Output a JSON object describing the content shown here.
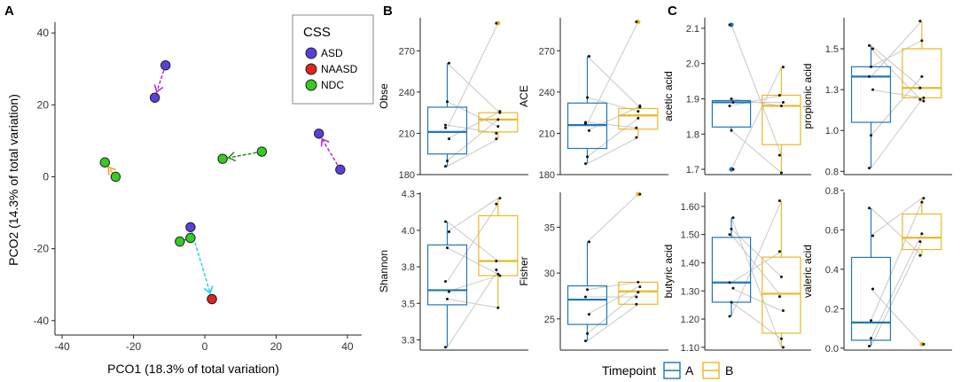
{
  "colors": {
    "A": "#1F78B4",
    "B": "#E8B923",
    "ASD": "#5A3FE0",
    "NAASD": "#E3231E",
    "NDC": "#33CC22",
    "ink": "#333333",
    "axis": "#222222",
    "pair": "#c8c8c8"
  },
  "panel_labels": {
    "a": "A",
    "b": "B",
    "c": "C"
  },
  "legend": {
    "timepoint_title": "Timepoint",
    "timepoint_a": "A",
    "timepoint_b": "B"
  },
  "chart_data": [
    {
      "id": "pcoa",
      "type": "scatter",
      "title": "",
      "xlabel": "PCO1 (18.3% of total variation)",
      "ylabel": "PCO2 (14.3% of total variation)",
      "xlim": [
        -42,
        44
      ],
      "ylim": [
        -44,
        43
      ],
      "xticks": [
        -40,
        -20,
        0,
        20,
        40
      ],
      "yticks": [
        -40,
        -20,
        0,
        20,
        40
      ],
      "legend_title": "CSS",
      "legend_entries": [
        "ASD",
        "NAASD",
        "NDC"
      ],
      "legend_position": "top-right",
      "series": [
        {
          "name": "ASD",
          "pairs": [
            {
              "from": [
                -11,
                31
              ],
              "to": [
                -14,
                22
              ],
              "arrow": "purple"
            },
            {
              "from": [
                38,
                2
              ],
              "to": [
                32,
                12
              ],
              "arrow": "purple"
            },
            {
              "from": [
                -4,
                -14
              ],
              "to": [
                2,
                -34
              ],
              "arrow": "cyan"
            }
          ]
        },
        {
          "name": "NAASD",
          "points": [
            [
              2,
              -34
            ]
          ]
        },
        {
          "name": "NDC",
          "pairs": [
            {
              "from": [
                -25,
                0
              ],
              "to": [
                -28,
                4
              ],
              "arrow": "orange"
            },
            {
              "from": [
                16,
                7
              ],
              "to": [
                5,
                5
              ],
              "arrow": "green"
            },
            {
              "from": [
                -7,
                -18
              ],
              "to": [
                -4,
                -17
              ],
              "arrow": "purple"
            }
          ]
        }
      ]
    },
    {
      "id": "obse",
      "type": "box",
      "ylabel": "Obse",
      "ylim": [
        180,
        294
      ],
      "yticks": [
        180,
        210,
        240,
        270
      ],
      "groups": {
        "A": {
          "min": 186,
          "q1": 195,
          "median": 211,
          "q3": 229,
          "max": 261
        },
        "B": {
          "min": 206,
          "q1": 211,
          "median": 220,
          "q3": 225,
          "max": 226
        }
      },
      "outliers": {
        "A": [],
        "B": [
          290
        ]
      },
      "pairs": [
        [
          186,
          206
        ],
        [
          190,
          220
        ],
        [
          206,
          225
        ],
        [
          216,
          210
        ],
        [
          233,
          215
        ],
        [
          261,
          226
        ],
        [
          214,
          290
        ]
      ]
    },
    {
      "id": "ace",
      "type": "box",
      "ylabel": "ACE",
      "ylim": [
        180,
        294
      ],
      "yticks": [
        180,
        210,
        240,
        270
      ],
      "groups": {
        "A": {
          "min": 188,
          "q1": 199,
          "median": 216,
          "q3": 232,
          "max": 266
        },
        "B": {
          "min": 207,
          "q1": 213,
          "median": 223,
          "q3": 228,
          "max": 230
        }
      },
      "outliers": {
        "A": [],
        "B": [
          291
        ]
      },
      "pairs": [
        [
          188,
          207
        ],
        [
          193,
          221
        ],
        [
          212,
          229
        ],
        [
          218,
          214
        ],
        [
          236,
          226
        ],
        [
          266,
          230
        ],
        [
          217,
          291
        ]
      ]
    },
    {
      "id": "shannon",
      "type": "box",
      "ylabel": "Shannon",
      "ylim": [
        3.18,
        4.26
      ],
      "yticks": [
        3.25,
        3.5,
        3.75,
        4.0,
        4.25
      ],
      "groups": {
        "A": {
          "min": 3.2,
          "q1": 3.49,
          "median": 3.59,
          "q3": 3.9,
          "max": 4.06
        },
        "B": {
          "min": 3.47,
          "q1": 3.69,
          "median": 3.79,
          "q3": 4.1,
          "max": 4.22
        }
      },
      "outliers": {
        "A": [],
        "B": []
      },
      "pairs": [
        [
          3.2,
          3.73
        ],
        [
          3.53,
          3.47
        ],
        [
          3.58,
          3.69
        ],
        [
          3.65,
          4.18
        ],
        [
          3.88,
          3.7
        ],
        [
          3.99,
          4.22
        ],
        [
          4.06,
          3.79
        ]
      ]
    },
    {
      "id": "fisher",
      "type": "box",
      "ylabel": "Fisher",
      "ylim": [
        21.6,
        38.8
      ],
      "yticks": [
        25,
        30,
        35
      ],
      "groups": {
        "A": {
          "min": 22.6,
          "q1": 24.4,
          "median": 27.1,
          "q3": 28.6,
          "max": 33.4
        },
        "B": {
          "min": 26.6,
          "q1": 26.6,
          "median": 28.0,
          "q3": 29.0,
          "max": 29.1
        }
      },
      "outliers": {
        "A": [],
        "B": [
          38.6
        ]
      },
      "pairs": [
        [
          22.6,
          26.6
        ],
        [
          23.4,
          27.9
        ],
        [
          25.5,
          28.5
        ],
        [
          27.4,
          27.4
        ],
        [
          28.2,
          29.0
        ],
        [
          33.4,
          38.6
        ]
      ]
    },
    {
      "id": "acetic",
      "type": "box",
      "ylabel": "acetic acid",
      "ylim": [
        1.685,
        2.13
      ],
      "yticks": [
        1.7,
        1.8,
        1.9,
        2.0,
        2.1
      ],
      "groups": {
        "A": {
          "min": 1.81,
          "q1": 1.82,
          "median": 1.89,
          "q3": 1.895,
          "max": 1.9
        },
        "B": {
          "min": 1.69,
          "q1": 1.77,
          "median": 1.88,
          "q3": 1.91,
          "max": 1.99
        }
      },
      "outliers": {
        "A": [
          1.7,
          2.11
        ],
        "B": []
      },
      "pairs": [
        [
          2.11,
          1.74
        ],
        [
          1.9,
          1.88
        ],
        [
          1.89,
          1.89
        ],
        [
          1.88,
          1.91
        ],
        [
          1.81,
          1.69
        ],
        [
          1.7,
          1.99
        ]
      ]
    },
    {
      "id": "propionic",
      "type": "box",
      "ylabel": "propionic acid",
      "ylim": [
        0.73,
        1.69
      ],
      "yticks": [
        0.75,
        1.0,
        1.25,
        1.5
      ],
      "groups": {
        "A": {
          "min": 0.77,
          "q1": 1.05,
          "median": 1.33,
          "q3": 1.39,
          "max": 1.52
        },
        "B": {
          "min": 1.18,
          "q1": 1.2,
          "median": 1.26,
          "q3": 1.5,
          "max": 1.67
        }
      },
      "outliers": {
        "A": [],
        "B": []
      },
      "pairs": [
        [
          0.77,
          1.19
        ],
        [
          0.97,
          1.33
        ],
        [
          1.25,
          1.2
        ],
        [
          1.33,
          1.67
        ],
        [
          1.39,
          1.55
        ],
        [
          1.5,
          1.18
        ],
        [
          1.52,
          1.26
        ]
      ]
    },
    {
      "id": "butyric",
      "type": "box",
      "ylabel": "butyric acid",
      "ylim": [
        1.09,
        1.65
      ],
      "yticks": [
        1.1,
        1.2,
        1.3,
        1.4,
        1.5,
        1.6
      ],
      "groups": {
        "A": {
          "min": 1.21,
          "q1": 1.26,
          "median": 1.33,
          "q3": 1.49,
          "max": 1.56
        },
        "B": {
          "min": 1.1,
          "q1": 1.15,
          "median": 1.29,
          "q3": 1.42,
          "max": 1.62
        }
      },
      "outliers": {
        "A": [],
        "B": []
      },
      "pairs": [
        [
          1.21,
          1.62
        ],
        [
          1.26,
          1.13
        ],
        [
          1.31,
          1.23
        ],
        [
          1.33,
          1.44
        ],
        [
          1.52,
          1.35
        ],
        [
          1.56,
          1.1
        ],
        [
          1.5,
          1.28
        ]
      ]
    },
    {
      "id": "valeric",
      "type": "box",
      "ylabel": "valeric acid",
      "ylim": [
        -0.01,
        0.79
      ],
      "yticks": [
        0.0,
        0.2,
        0.4,
        0.6,
        0.8
      ],
      "groups": {
        "A": {
          "min": 0.01,
          "q1": 0.04,
          "median": 0.13,
          "q3": 0.46,
          "max": 0.71
        },
        "B": {
          "min": 0.47,
          "q1": 0.5,
          "median": 0.56,
          "q3": 0.68,
          "max": 0.76
        }
      },
      "outliers": {
        "A": [],
        "B": [
          0.02
        ]
      },
      "pairs": [
        [
          0.01,
          0.54
        ],
        [
          0.14,
          0.74
        ],
        [
          0.57,
          0.76
        ],
        [
          0.71,
          0.47
        ],
        [
          0.05,
          0.58
        ],
        [
          0.3,
          0.02
        ]
      ]
    }
  ]
}
